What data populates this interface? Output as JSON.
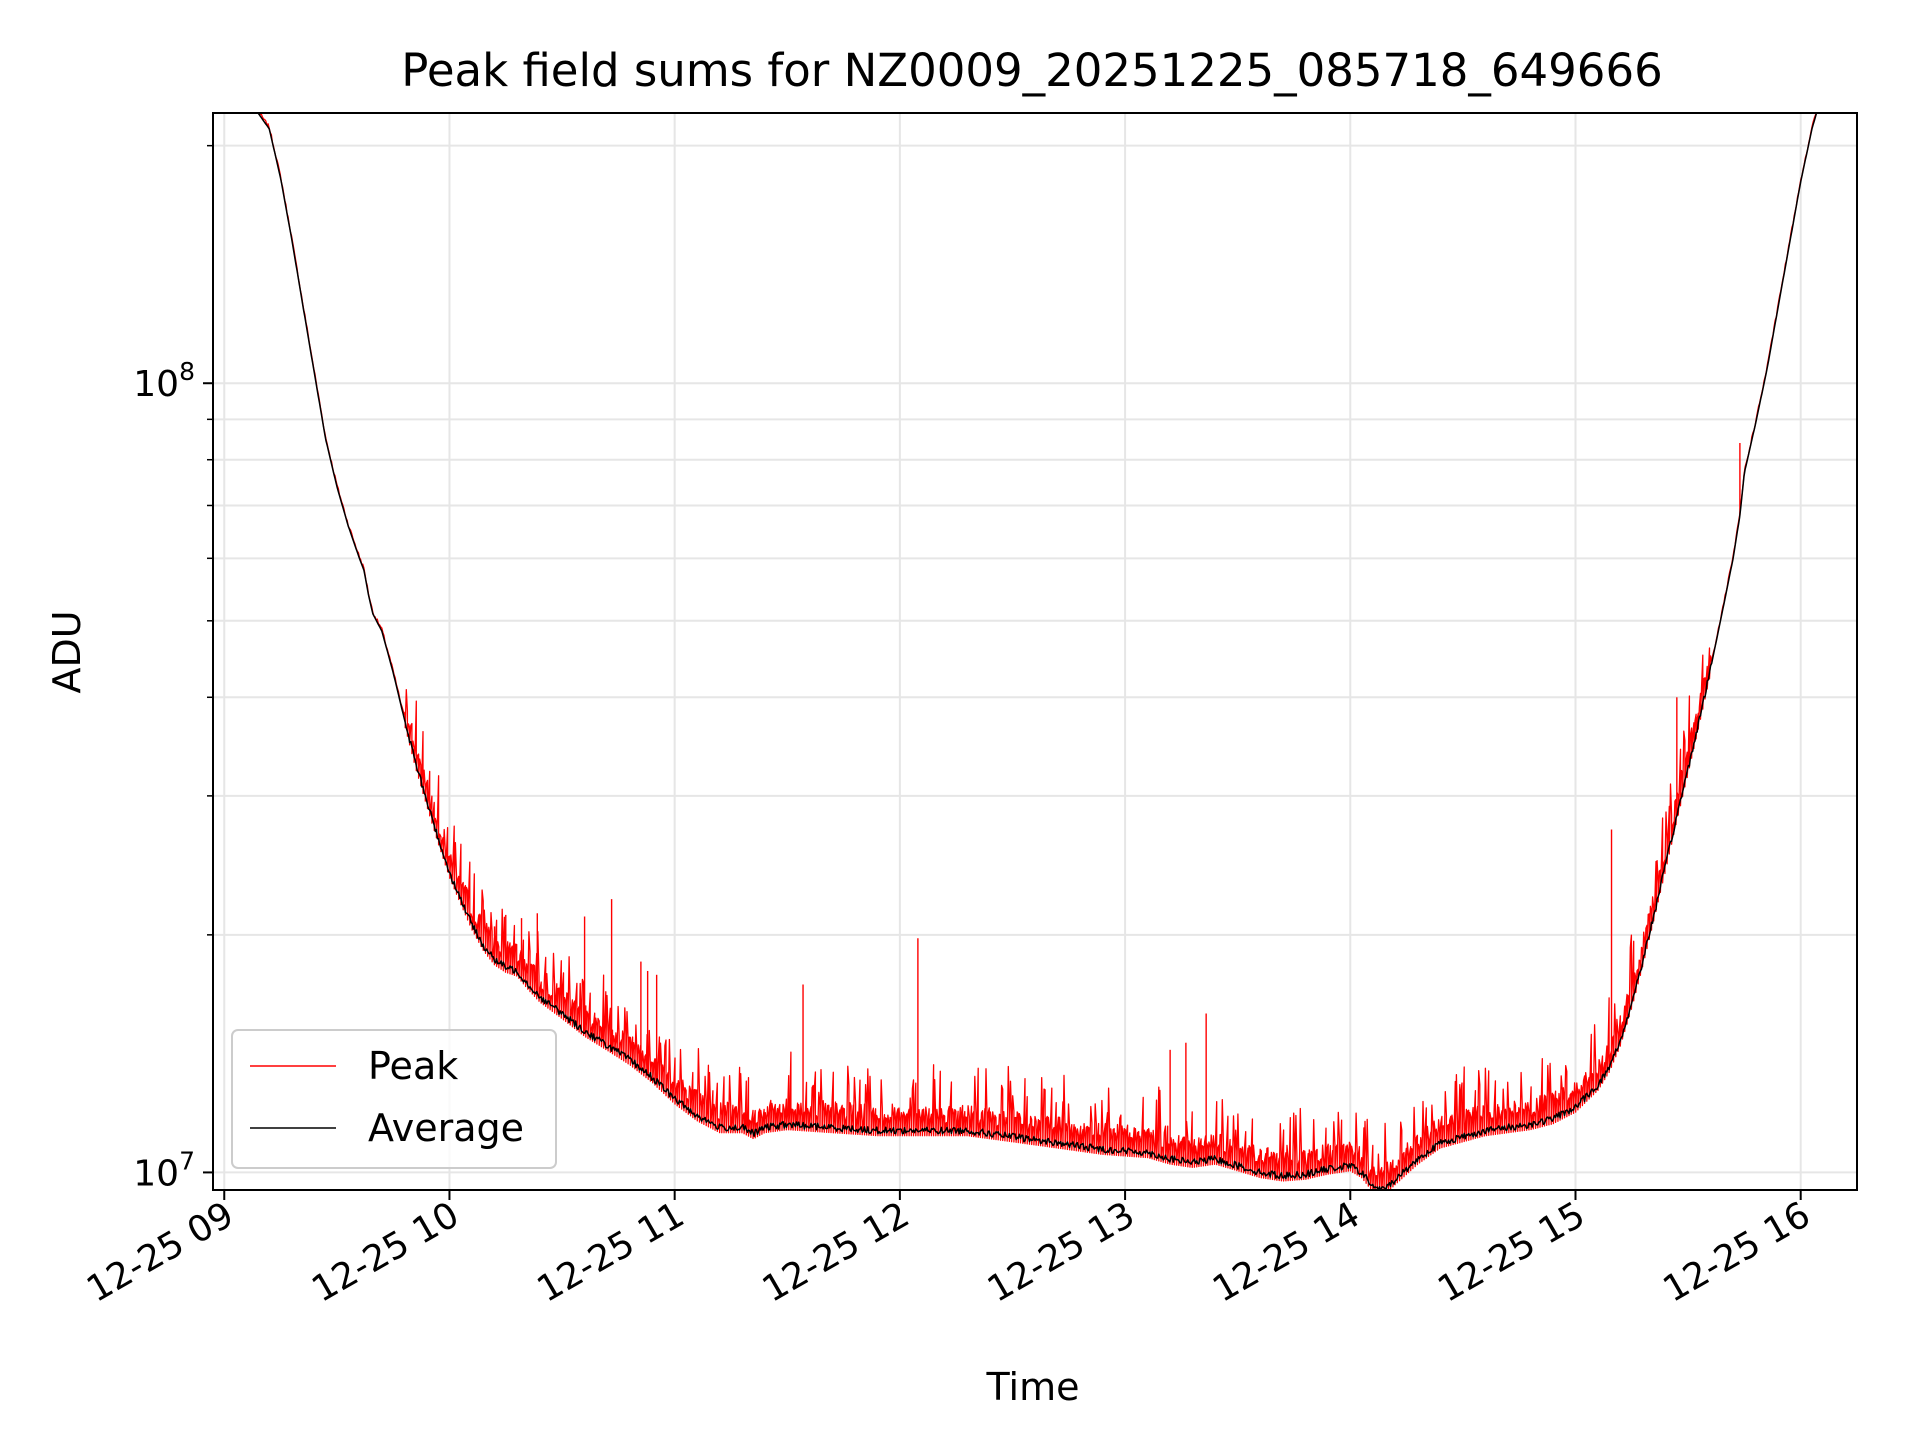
{
  "chart_data": {
    "type": "line",
    "title": "Peak field sums for NZ0009_20251225_085718_649666",
    "xlabel": "Time",
    "ylabel": "ADU",
    "yscale": "log",
    "ylim": [
      9500000,
      220000000
    ],
    "xlim": [
      8.95,
      16.25
    ],
    "grid": true,
    "x_ticks": [
      {
        "value": 9,
        "label": "12-25 09"
      },
      {
        "value": 10,
        "label": "12-25 10"
      },
      {
        "value": 11,
        "label": "12-25 11"
      },
      {
        "value": 12,
        "label": "12-25 12"
      },
      {
        "value": 13,
        "label": "12-25 13"
      },
      {
        "value": 14,
        "label": "12-25 14"
      },
      {
        "value": 15,
        "label": "12-25 15"
      },
      {
        "value": 16,
        "label": "12-25 16"
      }
    ],
    "y_ticks": [
      {
        "value": 10000000,
        "base": "10",
        "exp": "7"
      },
      {
        "value": 100000000,
        "base": "10",
        "exp": "8"
      }
    ],
    "y_minor_ticks": [
      20000000,
      30000000,
      40000000,
      50000000,
      60000000,
      70000000,
      80000000,
      90000000,
      200000000
    ],
    "legend": {
      "location": "lower-left"
    },
    "series": [
      {
        "name": "Average",
        "color": "#000000",
        "x": [
          9.15,
          9.2,
          9.25,
          9.3,
          9.35,
          9.4,
          9.45,
          9.5,
          9.55,
          9.6,
          9.62,
          9.64,
          9.66,
          9.7,
          9.75,
          9.8,
          9.85,
          9.9,
          9.95,
          10.0,
          10.05,
          10.1,
          10.15,
          10.2,
          10.25,
          10.3,
          10.35,
          10.4,
          10.5,
          10.6,
          10.7,
          10.8,
          10.9,
          11.0,
          11.1,
          11.2,
          11.3,
          11.35,
          11.4,
          11.5,
          11.7,
          11.9,
          12.1,
          12.3,
          12.5,
          12.7,
          12.9,
          13.1,
          13.2,
          13.3,
          13.4,
          13.5,
          13.6,
          13.7,
          13.8,
          13.9,
          14.0,
          14.05,
          14.1,
          14.15,
          14.2,
          14.3,
          14.4,
          14.5,
          14.6,
          14.7,
          14.8,
          14.9,
          15.0,
          15.1,
          15.15,
          15.2,
          15.25,
          15.3,
          15.35,
          15.4,
          15.45,
          15.5,
          15.55,
          15.6,
          15.65,
          15.7,
          15.73,
          15.75,
          15.8,
          15.85,
          15.9,
          15.95,
          16.0,
          16.05,
          16.08
        ],
        "values": [
          220000000,
          210000000,
          182000000,
          152000000,
          125000000,
          103000000,
          85000000,
          74000000,
          66000000,
          60000000,
          58000000,
          54000000,
          51000000,
          48500000,
          43000000,
          37500000,
          33000000,
          29500000,
          26500000,
          24000000,
          22200000,
          20600000,
          19400000,
          18600000,
          18200000,
          18000000,
          17300000,
          16700000,
          15900000,
          15100000,
          14500000,
          13900000,
          13200000,
          12400000,
          11800000,
          11400000,
          11400000,
          11200000,
          11400000,
          11500000,
          11400000,
          11300000,
          11300000,
          11300000,
          11100000,
          10900000,
          10700000,
          10600000,
          10400000,
          10300000,
          10400000,
          10200000,
          10000000,
          9900000,
          9950000,
          10100000,
          10200000,
          10000000,
          9600000,
          9500000,
          9800000,
          10400000,
          10900000,
          11100000,
          11300000,
          11400000,
          11500000,
          11700000,
          12100000,
          12900000,
          13600000,
          14700000,
          16400000,
          18600000,
          21300000,
          24500000,
          28300000,
          32500000,
          37500000,
          43500000,
          51000000,
          60000000,
          68000000,
          77000000,
          89000000,
          104000000,
          125000000,
          150000000,
          180000000,
          210000000,
          225000000
        ]
      },
      {
        "name": "Peak",
        "color": "#ff0000",
        "spikes": [
          {
            "x": 10.2,
            "value": 20500000
          },
          {
            "x": 10.25,
            "value": 21200000
          },
          {
            "x": 10.32,
            "value": 21000000
          },
          {
            "x": 10.39,
            "value": 21300000
          },
          {
            "x": 10.6,
            "value": 21100000
          },
          {
            "x": 10.72,
            "value": 22200000
          },
          {
            "x": 10.85,
            "value": 18500000
          },
          {
            "x": 10.88,
            "value": 18000000
          },
          {
            "x": 10.92,
            "value": 17800000
          },
          {
            "x": 11.57,
            "value": 17300000
          },
          {
            "x": 12.08,
            "value": 19800000
          },
          {
            "x": 13.2,
            "value": 14300000
          },
          {
            "x": 13.27,
            "value": 14600000
          },
          {
            "x": 13.36,
            "value": 15900000
          },
          {
            "x": 15.16,
            "value": 27200000
          },
          {
            "x": 15.45,
            "value": 40000000
          },
          {
            "x": 15.73,
            "value": 84000000
          }
        ]
      }
    ]
  }
}
